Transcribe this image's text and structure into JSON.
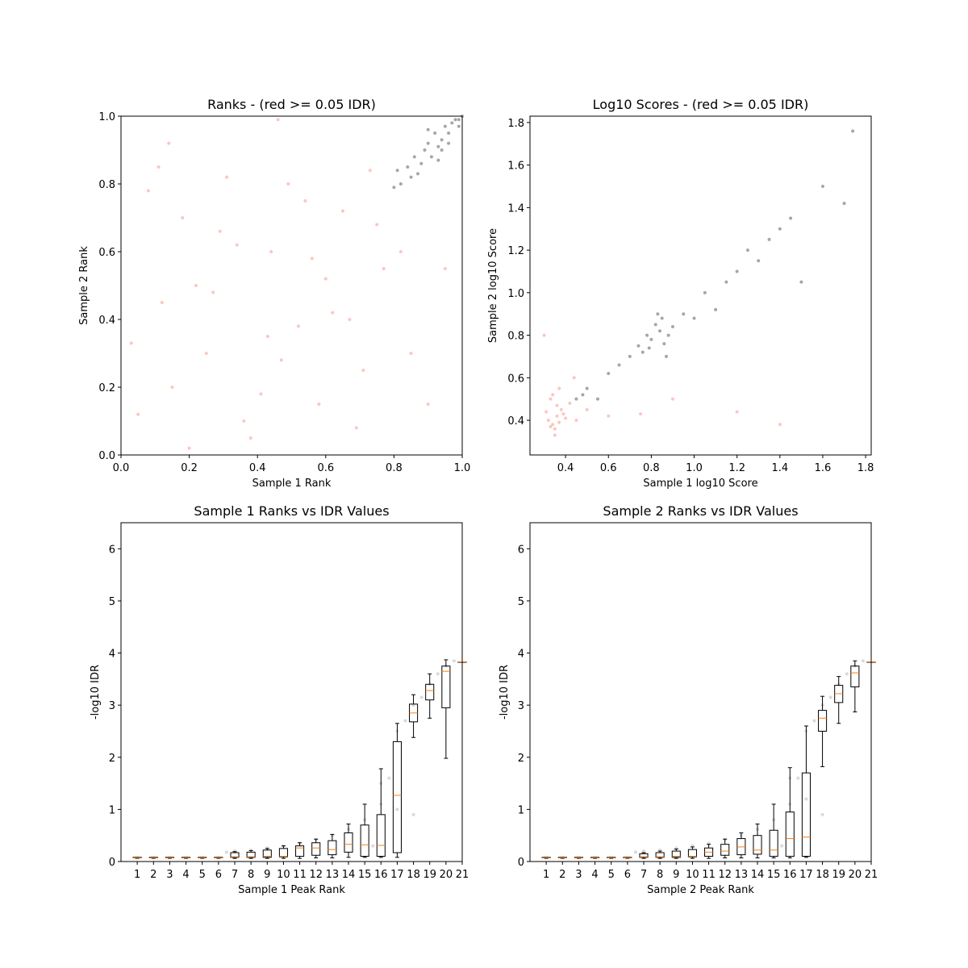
{
  "chart_data": [
    {
      "type": "scatter",
      "title": "Ranks - (red >= 0.05 IDR)",
      "x_label": "Sample 1 Rank",
      "y_label": "Sample 2 Rank",
      "xlim": [
        0,
        1
      ],
      "ylim": [
        0,
        1
      ],
      "xticks": [
        {
          "value": 0,
          "label": "0.0"
        },
        0.2,
        0.4,
        0.6,
        0.8,
        {
          "value": 1,
          "label": "1.0"
        }
      ],
      "yticks": [
        {
          "value": 0,
          "label": "0.0"
        },
        0.2,
        0.4,
        0.6,
        0.8,
        {
          "value": 1,
          "label": "1.0"
        }
      ],
      "series": [
        {
          "color": "#fa8072",
          "x": [
            0.05,
            0.12,
            0.18,
            0.25,
            0.31,
            0.38,
            0.44,
            0.52,
            0.58,
            0.65,
            0.71,
            0.77,
            0.08,
            0.15,
            0.22,
            0.29,
            0.36,
            0.43,
            0.49,
            0.56,
            0.62,
            0.69,
            0.75,
            0.82,
            0.03,
            0.11,
            0.2,
            0.27,
            0.34,
            0.41,
            0.47,
            0.54,
            0.6,
            0.67,
            0.73,
            0.85,
            0.9,
            0.95,
            0.14,
            0.46
          ],
          "values": [
            0.12,
            0.45,
            0.7,
            0.3,
            0.82,
            0.05,
            0.6,
            0.38,
            0.15,
            0.72,
            0.25,
            0.55,
            0.78,
            0.2,
            0.5,
            0.66,
            0.1,
            0.35,
            0.8,
            0.58,
            0.42,
            0.08,
            0.68,
            0.6,
            0.33,
            0.85,
            0.02,
            0.48,
            0.62,
            0.18,
            0.28,
            0.75,
            0.52,
            0.4,
            0.84,
            0.3,
            0.15,
            0.55,
            0.92,
            0.99
          ]
        },
        {
          "color": "#000000",
          "x": [
            0.8,
            0.82,
            0.84,
            0.85,
            0.86,
            0.88,
            0.89,
            0.9,
            0.91,
            0.92,
            0.93,
            0.94,
            0.95,
            0.96,
            0.97,
            0.98,
            0.99,
            1.0,
            0.87,
            0.9,
            0.93,
            0.96,
            0.81,
            0.94,
            0.99
          ],
          "values": [
            0.79,
            0.8,
            0.85,
            0.82,
            0.88,
            0.86,
            0.9,
            0.92,
            0.88,
            0.95,
            0.91,
            0.93,
            0.97,
            0.95,
            0.98,
            0.99,
            0.99,
            1.0,
            0.83,
            0.96,
            0.87,
            0.92,
            0.84,
            0.9,
            0.97
          ]
        }
      ]
    },
    {
      "type": "scatter",
      "title": "Log10 Scores - (red >= 0.05 IDR)",
      "x_label": "Sample 1 log10 Score",
      "y_label": "Sample 2 log10 Score",
      "xlim": [
        0.234,
        1.826
      ],
      "ylim": [
        0.237,
        1.83
      ],
      "xticks": [
        0.4,
        0.6,
        0.8,
        {
          "value": 1,
          "label": "1.0"
        },
        1.2,
        1.4,
        1.6,
        1.8
      ],
      "yticks": [
        0.4,
        0.6,
        0.8,
        {
          "value": 1,
          "label": "1.0"
        },
        1.2,
        1.4,
        1.6,
        1.8
      ],
      "series": [
        {
          "color": "#fa8072",
          "x": [
            0.32,
            0.34,
            0.36,
            0.38,
            0.33,
            0.35,
            0.37,
            0.39,
            0.31,
            0.34,
            0.36,
            0.4,
            0.42,
            0.35,
            0.33,
            0.37,
            0.45,
            0.5,
            0.6,
            0.75,
            0.9,
            1.2,
            1.4,
            0.3,
            0.44
          ],
          "values": [
            0.4,
            0.38,
            0.42,
            0.45,
            0.5,
            0.36,
            0.39,
            0.43,
            0.44,
            0.52,
            0.47,
            0.41,
            0.48,
            0.33,
            0.37,
            0.55,
            0.4,
            0.45,
            0.42,
            0.43,
            0.5,
            0.44,
            0.38,
            0.8,
            0.6
          ]
        },
        {
          "color": "#000000",
          "x": [
            0.45,
            0.48,
            0.5,
            0.55,
            0.6,
            0.65,
            0.7,
            0.74,
            0.76,
            0.78,
            0.8,
            0.82,
            0.84,
            0.85,
            0.86,
            0.88,
            0.9,
            0.95,
            1.0,
            1.05,
            1.1,
            1.15,
            1.2,
            1.25,
            1.3,
            1.35,
            1.4,
            1.45,
            1.5,
            1.6,
            1.7,
            1.74,
            0.79,
            0.83,
            0.87
          ],
          "values": [
            0.5,
            0.52,
            0.55,
            0.5,
            0.62,
            0.66,
            0.7,
            0.75,
            0.72,
            0.8,
            0.78,
            0.85,
            0.82,
            0.88,
            0.76,
            0.8,
            0.84,
            0.9,
            0.88,
            1.0,
            0.92,
            1.05,
            1.1,
            1.2,
            1.15,
            1.25,
            1.3,
            1.35,
            1.05,
            1.5,
            1.42,
            1.76,
            0.74,
            0.9,
            0.7
          ]
        }
      ]
    },
    {
      "type": "box",
      "title": "Sample 1 Ranks vs IDR Values",
      "x_label": "Sample 1 Peak Rank",
      "y_label": "-log10 IDR",
      "xlim": [
        0,
        21
      ],
      "ylim": [
        0,
        6.5
      ],
      "xticks": [
        1,
        2,
        3,
        4,
        5,
        6,
        7,
        8,
        9,
        10,
        11,
        12,
        13,
        14,
        15,
        16,
        17,
        18,
        19,
        20,
        21
      ],
      "yticks": [
        0,
        1,
        2,
        3,
        4,
        5,
        6
      ],
      "positions": [
        1,
        2,
        3,
        4,
        5,
        6,
        7,
        8,
        9,
        10,
        11,
        12,
        13,
        14,
        15,
        16,
        17,
        18,
        19,
        20,
        21
      ],
      "boxes": [
        [
          0.06,
          0.07,
          0.07,
          0.08,
          0.08
        ],
        [
          0.06,
          0.07,
          0.07,
          0.08,
          0.08
        ],
        [
          0.06,
          0.07,
          0.07,
          0.08,
          0.08
        ],
        [
          0.06,
          0.07,
          0.07,
          0.08,
          0.08
        ],
        [
          0.06,
          0.07,
          0.07,
          0.08,
          0.08
        ],
        [
          0.06,
          0.07,
          0.07,
          0.08,
          0.08
        ],
        [
          0.06,
          0.08,
          0.09,
          0.17,
          0.19
        ],
        [
          0.06,
          0.08,
          0.09,
          0.18,
          0.21
        ],
        [
          0.06,
          0.08,
          0.1,
          0.22,
          0.25
        ],
        [
          0.06,
          0.09,
          0.1,
          0.25,
          0.3
        ],
        [
          0.06,
          0.1,
          0.26,
          0.3,
          0.36
        ],
        [
          0.07,
          0.12,
          0.26,
          0.36,
          0.43
        ],
        [
          0.07,
          0.13,
          0.23,
          0.4,
          0.52
        ],
        [
          0.08,
          0.18,
          0.33,
          0.55,
          0.72
        ],
        [
          0.08,
          0.1,
          0.32,
          0.7,
          1.1
        ],
        [
          0.08,
          0.1,
          0.31,
          0.9,
          1.78
        ],
        [
          0.08,
          0.17,
          1.27,
          2.3,
          2.65
        ],
        [
          2.38,
          2.68,
          2.85,
          3.02,
          3.2
        ],
        [
          2.75,
          3.1,
          3.28,
          3.4,
          3.6
        ],
        [
          1.98,
          2.95,
          3.65,
          3.75,
          3.87
        ],
        [
          3.83,
          3.83,
          3.83,
          3.83,
          3.83
        ]
      ],
      "box_color": "#000000",
      "median_color": "#ff7f0e",
      "points": {
        "color": "#808080",
        "x": [
          6.5,
          7,
          8,
          9,
          10,
          11,
          12,
          13,
          14,
          15,
          16,
          16.5,
          17,
          17.5,
          18,
          18.5,
          19,
          19.5,
          20,
          20.5,
          16,
          17,
          18,
          15.5
        ],
        "values": [
          0.18,
          0.2,
          0.22,
          0.26,
          0.3,
          0.35,
          0.42,
          0.5,
          0.62,
          0.8,
          1.1,
          1.6,
          2.5,
          2.7,
          3.0,
          3.15,
          3.4,
          3.6,
          3.75,
          3.85,
          1.5,
          1.0,
          0.9,
          0.3
        ]
      }
    },
    {
      "type": "box",
      "title": "Sample 2 Ranks vs IDR Values",
      "x_label": "Sample 2 Peak Rank",
      "y_label": "-log10 IDR",
      "xlim": [
        0,
        21
      ],
      "ylim": [
        0,
        6.5
      ],
      "xticks": [
        1,
        2,
        3,
        4,
        5,
        6,
        7,
        8,
        9,
        10,
        11,
        12,
        13,
        14,
        15,
        16,
        17,
        18,
        19,
        20,
        21
      ],
      "yticks": [
        0,
        1,
        2,
        3,
        4,
        5,
        6
      ],
      "positions": [
        1,
        2,
        3,
        4,
        5,
        6,
        7,
        8,
        9,
        10,
        11,
        12,
        13,
        14,
        15,
        16,
        17,
        18,
        19,
        20,
        21
      ],
      "boxes": [
        [
          0.06,
          0.07,
          0.07,
          0.08,
          0.08
        ],
        [
          0.06,
          0.07,
          0.07,
          0.08,
          0.08
        ],
        [
          0.06,
          0.07,
          0.07,
          0.08,
          0.08
        ],
        [
          0.06,
          0.07,
          0.07,
          0.08,
          0.08
        ],
        [
          0.06,
          0.07,
          0.07,
          0.08,
          0.08
        ],
        [
          0.06,
          0.07,
          0.07,
          0.08,
          0.08
        ],
        [
          0.06,
          0.08,
          0.09,
          0.15,
          0.17
        ],
        [
          0.06,
          0.08,
          0.09,
          0.17,
          0.2
        ],
        [
          0.06,
          0.08,
          0.1,
          0.2,
          0.24
        ],
        [
          0.06,
          0.09,
          0.1,
          0.23,
          0.28
        ],
        [
          0.06,
          0.1,
          0.18,
          0.26,
          0.33
        ],
        [
          0.07,
          0.12,
          0.2,
          0.33,
          0.43
        ],
        [
          0.07,
          0.13,
          0.28,
          0.44,
          0.55
        ],
        [
          0.07,
          0.14,
          0.22,
          0.5,
          0.72
        ],
        [
          0.07,
          0.1,
          0.22,
          0.6,
          1.1
        ],
        [
          0.07,
          0.1,
          0.44,
          0.95,
          1.8
        ],
        [
          0.08,
          0.1,
          0.47,
          1.7,
          2.6
        ],
        [
          1.82,
          2.5,
          2.75,
          2.9,
          3.17
        ],
        [
          2.65,
          3.05,
          3.22,
          3.38,
          3.55
        ],
        [
          2.87,
          3.35,
          3.62,
          3.75,
          3.85
        ],
        [
          3.83,
          3.83,
          3.83,
          3.83,
          3.83
        ]
      ],
      "box_color": "#000000",
      "median_color": "#ff7f0e",
      "points": {
        "color": "#808080",
        "x": [
          6.5,
          7,
          8,
          9,
          10,
          11,
          12,
          13,
          14,
          15,
          16,
          16.5,
          17,
          17.5,
          18,
          18.5,
          19,
          19.5,
          20,
          20.5,
          16,
          17,
          18,
          15.5
        ],
        "values": [
          0.18,
          0.2,
          0.22,
          0.26,
          0.3,
          0.35,
          0.42,
          0.5,
          0.62,
          0.8,
          1.1,
          1.6,
          2.5,
          2.7,
          3.0,
          3.15,
          3.4,
          3.6,
          3.75,
          3.85,
          1.6,
          1.2,
          0.9,
          0.3
        ]
      }
    }
  ]
}
